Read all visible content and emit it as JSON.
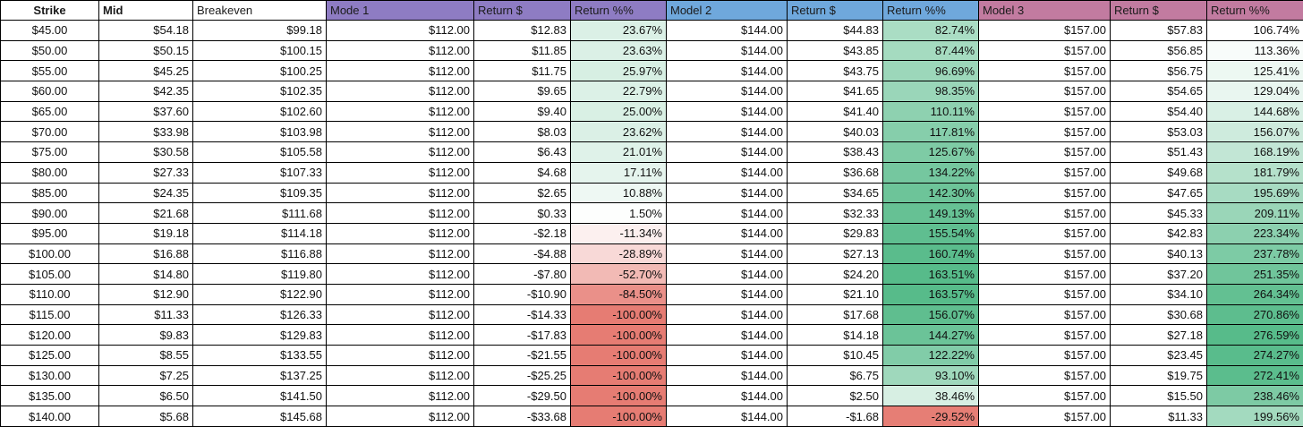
{
  "table": {
    "columns": [
      {
        "label": "Strike",
        "header_bg": "#FFFFFF",
        "bold": true,
        "align": "center"
      },
      {
        "label": "Mid",
        "header_bg": "#FFFFFF",
        "bold": true,
        "align": "left"
      },
      {
        "label": "Breakeven",
        "header_bg": "#FFFFFF",
        "bold": false,
        "align": "left"
      },
      {
        "label": "Mode 1",
        "header_bg": "#8E7CC3",
        "bold": false,
        "align": "left"
      },
      {
        "label": "Return $",
        "header_bg": "#8E7CC3",
        "bold": false,
        "align": "left"
      },
      {
        "label": "Return %%",
        "header_bg": "#8E7CC3",
        "bold": false,
        "align": "left"
      },
      {
        "label": "Model 2",
        "header_bg": "#6FA8DC",
        "bold": false,
        "align": "left"
      },
      {
        "label": "Return $",
        "header_bg": "#6FA8DC",
        "bold": false,
        "align": "left"
      },
      {
        "label": "Return %%",
        "header_bg": "#6FA8DC",
        "bold": false,
        "align": "left"
      },
      {
        "label": "Model 3",
        "header_bg": "#C27BA0",
        "bold": false,
        "align": "left"
      },
      {
        "label": "Return $",
        "header_bg": "#C27BA0",
        "bold": false,
        "align": "left"
      },
      {
        "label": "Return %%",
        "header_bg": "#C27BA0",
        "bold": false,
        "align": "left"
      }
    ],
    "rows": [
      [
        "$45.00",
        "$54.18",
        "$99.18",
        "$112.00",
        "$12.83",
        "23.67%",
        "$144.00",
        "$44.83",
        "82.74%",
        "$157.00",
        "$57.83",
        "106.74%"
      ],
      [
        "$50.00",
        "$50.15",
        "$100.15",
        "$112.00",
        "$11.85",
        "23.63%",
        "$144.00",
        "$43.85",
        "87.44%",
        "$157.00",
        "$56.85",
        "113.36%"
      ],
      [
        "$55.00",
        "$45.25",
        "$100.25",
        "$112.00",
        "$11.75",
        "25.97%",
        "$144.00",
        "$43.75",
        "96.69%",
        "$157.00",
        "$56.75",
        "125.41%"
      ],
      [
        "$60.00",
        "$42.35",
        "$102.35",
        "$112.00",
        "$9.65",
        "22.79%",
        "$144.00",
        "$41.65",
        "98.35%",
        "$157.00",
        "$54.65",
        "129.04%"
      ],
      [
        "$65.00",
        "$37.60",
        "$102.60",
        "$112.00",
        "$9.40",
        "25.00%",
        "$144.00",
        "$41.40",
        "110.11%",
        "$157.00",
        "$54.40",
        "144.68%"
      ],
      [
        "$70.00",
        "$33.98",
        "$103.98",
        "$112.00",
        "$8.03",
        "23.62%",
        "$144.00",
        "$40.03",
        "117.81%",
        "$157.00",
        "$53.03",
        "156.07%"
      ],
      [
        "$75.00",
        "$30.58",
        "$105.58",
        "$112.00",
        "$6.43",
        "21.01%",
        "$144.00",
        "$38.43",
        "125.67%",
        "$157.00",
        "$51.43",
        "168.19%"
      ],
      [
        "$80.00",
        "$27.33",
        "$107.33",
        "$112.00",
        "$4.68",
        "17.11%",
        "$144.00",
        "$36.68",
        "134.22%",
        "$157.00",
        "$49.68",
        "181.79%"
      ],
      [
        "$85.00",
        "$24.35",
        "$109.35",
        "$112.00",
        "$2.65",
        "10.88%",
        "$144.00",
        "$34.65",
        "142.30%",
        "$157.00",
        "$47.65",
        "195.69%"
      ],
      [
        "$90.00",
        "$21.68",
        "$111.68",
        "$112.00",
        "$0.33",
        "1.50%",
        "$144.00",
        "$32.33",
        "149.13%",
        "$157.00",
        "$45.33",
        "209.11%"
      ],
      [
        "$95.00",
        "$19.18",
        "$114.18",
        "$112.00",
        "-$2.18",
        "-11.34%",
        "$144.00",
        "$29.83",
        "155.54%",
        "$157.00",
        "$42.83",
        "223.34%"
      ],
      [
        "$100.00",
        "$16.88",
        "$116.88",
        "$112.00",
        "-$4.88",
        "-28.89%",
        "$144.00",
        "$27.13",
        "160.74%",
        "$157.00",
        "$40.13",
        "237.78%"
      ],
      [
        "$105.00",
        "$14.80",
        "$119.80",
        "$112.00",
        "-$7.80",
        "-52.70%",
        "$144.00",
        "$24.20",
        "163.51%",
        "$157.00",
        "$37.20",
        "251.35%"
      ],
      [
        "$110.00",
        "$12.90",
        "$122.90",
        "$112.00",
        "-$10.90",
        "-84.50%",
        "$144.00",
        "$21.10",
        "163.57%",
        "$157.00",
        "$34.10",
        "264.34%"
      ],
      [
        "$115.00",
        "$11.33",
        "$126.33",
        "$112.00",
        "-$14.33",
        "-100.00%",
        "$144.00",
        "$17.68",
        "156.07%",
        "$157.00",
        "$30.68",
        "270.86%"
      ],
      [
        "$120.00",
        "$9.83",
        "$129.83",
        "$112.00",
        "-$17.83",
        "-100.00%",
        "$144.00",
        "$14.18",
        "144.27%",
        "$157.00",
        "$27.18",
        "276.59%"
      ],
      [
        "$125.00",
        "$8.55",
        "$133.55",
        "$112.00",
        "-$21.55",
        "-100.00%",
        "$144.00",
        "$10.45",
        "122.22%",
        "$157.00",
        "$23.45",
        "274.27%"
      ],
      [
        "$130.00",
        "$7.25",
        "$137.25",
        "$112.00",
        "-$25.25",
        "-100.00%",
        "$144.00",
        "$6.75",
        "93.10%",
        "$157.00",
        "$19.75",
        "272.41%"
      ],
      [
        "$135.00",
        "$6.50",
        "$141.50",
        "$112.00",
        "-$29.50",
        "-100.00%",
        "$144.00",
        "$2.50",
        "38.46%",
        "$157.00",
        "$15.50",
        "238.46%"
      ],
      [
        "$140.00",
        "$5.68",
        "$145.68",
        "$112.00",
        "-$33.68",
        "-100.00%",
        "$144.00",
        "-$1.68",
        "-29.52%",
        "$157.00",
        "$11.33",
        "199.56%"
      ]
    ]
  },
  "conditional_format": {
    "scales": {
      "5": {
        "stops": [
          [
            -100,
            "#E67C73"
          ],
          [
            0,
            "#FFFFFF"
          ],
          [
            110,
            "#57BB8A"
          ]
        ]
      },
      "8": {
        "stops": [
          [
            -30,
            "#E67C73"
          ],
          [
            0,
            "#FFFFFF"
          ],
          [
            163.57,
            "#57BB8A"
          ]
        ]
      },
      "11": {
        "stops": [
          [
            106.74,
            "#FFFFFF"
          ],
          [
            276.59,
            "#57BB8A"
          ]
        ]
      }
    }
  },
  "palette": {
    "header_purple": "#8E7CC3",
    "header_blue": "#6FA8DC",
    "header_pink": "#C27BA0",
    "scale_red": "#E67C73",
    "scale_white": "#FFFFFF",
    "scale_green": "#57BB8A",
    "grid_border": "#000000"
  }
}
